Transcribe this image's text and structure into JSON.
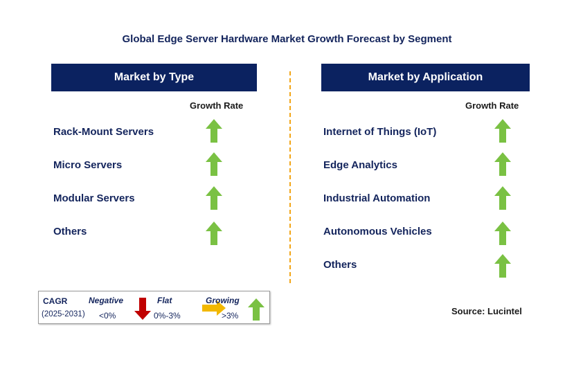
{
  "title": "Global Edge Server Hardware Market Growth Forecast by Segment",
  "left_panel": {
    "header": "Market by Type",
    "growth_label": "Growth Rate",
    "rows": [
      {
        "label": "Rack-Mount Servers",
        "trend": "growing"
      },
      {
        "label": "Micro Servers",
        "trend": "growing"
      },
      {
        "label": "Modular Servers",
        "trend": "growing"
      },
      {
        "label": "Others",
        "trend": "growing"
      }
    ]
  },
  "right_panel": {
    "header": "Market by Application",
    "growth_label": "Growth Rate",
    "rows": [
      {
        "label": "Internet of Things (IoT)",
        "trend": "growing"
      },
      {
        "label": "Edge Analytics",
        "trend": "growing"
      },
      {
        "label": "Industrial Automation",
        "trend": "growing"
      },
      {
        "label": "Autonomous Vehicles",
        "trend": "growing"
      },
      {
        "label": "Others",
        "trend": "growing"
      }
    ]
  },
  "legend": {
    "cagr_label": "CAGR",
    "period": "(2025-2031)",
    "negative_label": "Negative",
    "negative_range": "<0%",
    "flat_label": "Flat",
    "flat_range": "0%-3%",
    "growing_label": "Growing",
    "growing_range": ">3%"
  },
  "source": "Source: Lucintel",
  "colors": {
    "header_bg": "#0b2260",
    "growing_arrow": "#7ac143",
    "flat_arrow": "#f2b800",
    "negative_arrow": "#c00000",
    "divider": "#f2a516"
  },
  "icons": {
    "growing": "green-up-arrow-icon",
    "flat": "yellow-right-arrow-icon",
    "negative": "red-down-arrow-icon"
  }
}
